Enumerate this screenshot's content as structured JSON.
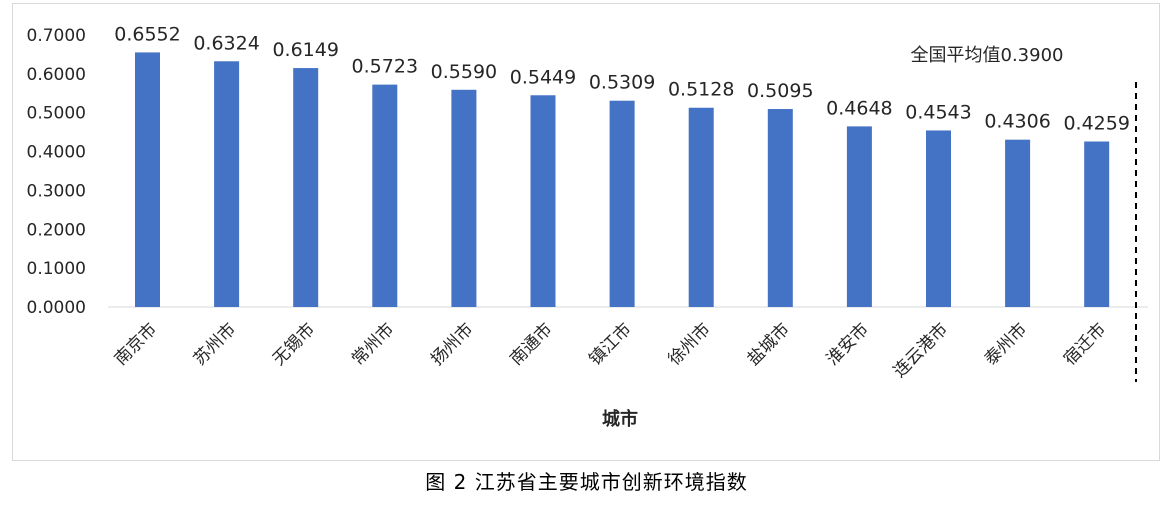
{
  "caption": "图 2 江苏省主要城市创新环境指数",
  "chart_data": {
    "type": "bar",
    "categories": [
      "南京市",
      "苏州市",
      "无锡市",
      "常州市",
      "扬州市",
      "南通市",
      "镇江市",
      "徐州市",
      "盐城市",
      "淮安市",
      "连云港市",
      "泰州市",
      "宿迁市"
    ],
    "values": [
      0.6552,
      0.6324,
      0.6149,
      0.5723,
      0.559,
      0.5449,
      0.5309,
      0.5128,
      0.5095,
      0.4648,
      0.4543,
      0.4306,
      0.4259
    ],
    "data_labels": [
      "0.6552",
      "0.6324",
      "0.6149",
      "0.5723",
      "0.5590",
      "0.5449",
      "0.5309",
      "0.5128",
      "0.5095",
      "0.4648",
      "0.4543",
      "0.4306",
      "0.4259"
    ],
    "title": "",
    "xlabel": "城市",
    "ylabel": "",
    "ylim": [
      0,
      0.7
    ],
    "yticks": [
      0.0,
      0.1,
      0.2,
      0.3,
      0.4,
      0.5,
      0.6,
      0.7
    ],
    "ytick_labels": [
      "0.0000",
      "0.1000",
      "0.2000",
      "0.3000",
      "0.4000",
      "0.5000",
      "0.6000",
      "0.7000"
    ],
    "grid": false,
    "bar_color": "#4472C4",
    "reference_line": {
      "label": "全国平均值0.3900",
      "value": 0.39,
      "style": "dashed vertical"
    }
  }
}
